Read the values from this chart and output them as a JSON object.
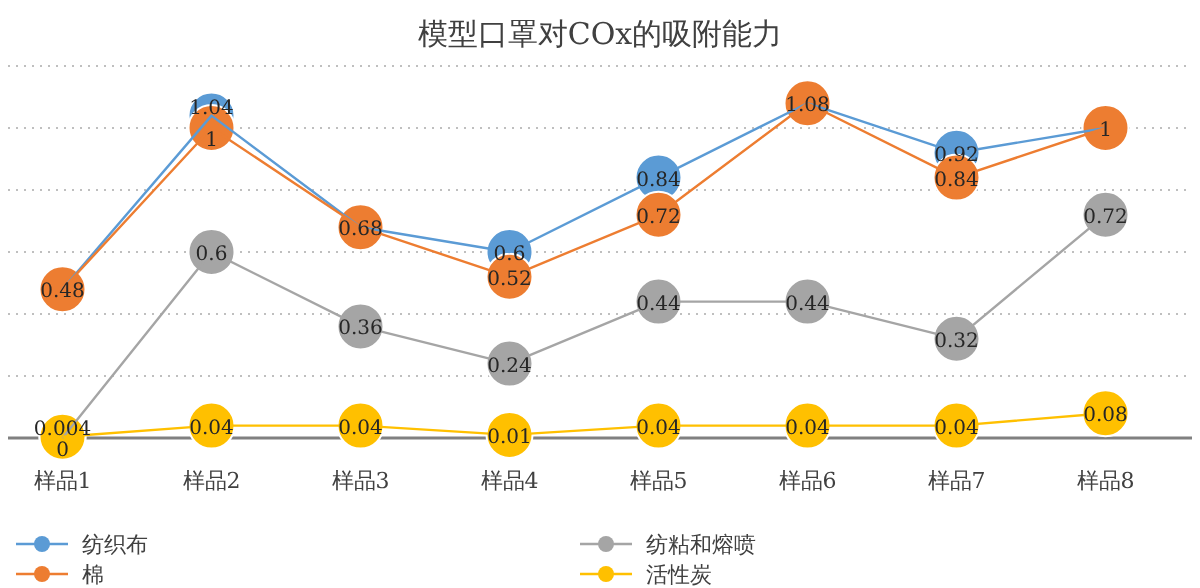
{
  "chart_data": {
    "type": "line",
    "title": "模型口罩对COx的吸附能力",
    "categories": [
      "样品1",
      "样品2",
      "样品3",
      "样品4",
      "样品5",
      "样品6",
      "样品7",
      "样品8"
    ],
    "series": [
      {
        "name": "纺织布",
        "color": "#5b9bd5",
        "values": [
          0.48,
          1.04,
          0.68,
          0.6,
          0.84,
          1.08,
          0.92,
          1
        ],
        "value_labels": [
          null,
          "1.04",
          null,
          "0.6",
          "0.84",
          null,
          "0.92",
          null
        ]
      },
      {
        "name": "棉",
        "color": "#ed7d31",
        "values": [
          0.48,
          1,
          0.68,
          0.52,
          0.72,
          1.08,
          0.84,
          1
        ]
      },
      {
        "name": "纺粘和熔喷",
        "color": "#a5a5a5",
        "values": [
          0,
          0.6,
          0.36,
          0.24,
          0.44,
          0.44,
          0.32,
          0.72
        ]
      },
      {
        "name": "活性炭",
        "color": "#ffc000",
        "values": [
          0.004,
          0.04,
          0.04,
          0.01,
          0.04,
          0.04,
          0.04,
          0.08
        ]
      }
    ],
    "ylim": [
      0,
      1.2
    ],
    "yticks": [
      {
        "value": 0,
        "label": null
      },
      {
        "value": 0.2,
        "label": null
      },
      {
        "value": 0.4,
        "label": null
      },
      {
        "value": 0.6,
        "label": null
      },
      {
        "value": 0.8,
        "label": null
      },
      {
        "value": 1,
        "label": null
      },
      {
        "value": 1.2,
        "label": null
      }
    ],
    "grid": "y",
    "legend": "bottom",
    "marker": "circle",
    "line_style": "solid",
    "data_labels": true
  }
}
